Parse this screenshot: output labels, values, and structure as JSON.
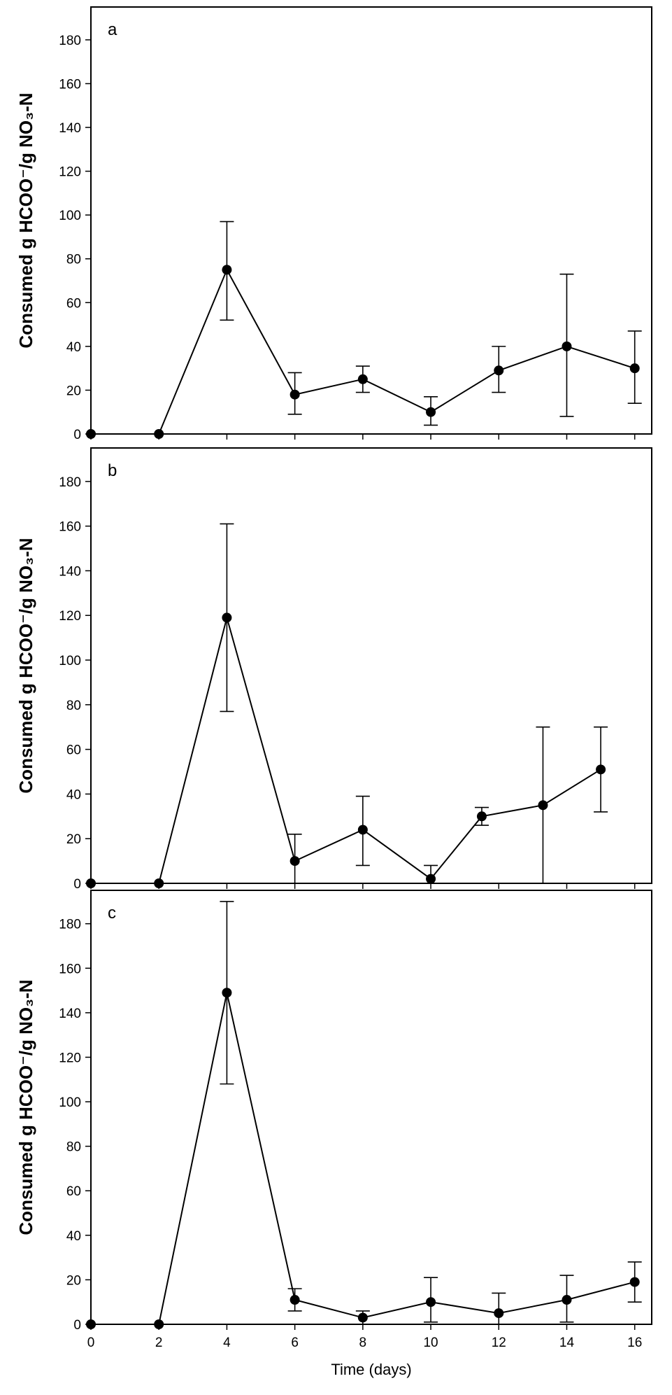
{
  "figure": {
    "xlabel": "Time (days)"
  },
  "chart_data": [
    {
      "type": "line",
      "panel_label": "a",
      "ylabel": "Consumed g HCOO⁻/g NO₃-N",
      "xlabel": "",
      "xlim": [
        0,
        16.5
      ],
      "ylim": [
        0,
        195
      ],
      "yticks": [
        0,
        20,
        40,
        60,
        80,
        100,
        120,
        140,
        160,
        180
      ],
      "xticks": [
        0,
        2,
        4,
        6,
        8,
        10,
        12,
        14,
        16
      ],
      "show_x_tick_labels": false,
      "series": [
        {
          "name": "a",
          "x": [
            0,
            2,
            4,
            6,
            8,
            10,
            12,
            14,
            16
          ],
          "y": [
            0,
            0,
            75,
            18,
            25,
            10,
            29,
            40,
            30
          ],
          "err_low": [
            null,
            null,
            52,
            9,
            19,
            4,
            19,
            8,
            14
          ],
          "err_high": [
            null,
            null,
            97,
            28,
            31,
            17,
            40,
            73,
            47
          ]
        }
      ]
    },
    {
      "type": "line",
      "panel_label": "b",
      "ylabel": "Consumed g HCOO⁻/g NO₃-N",
      "xlabel": "",
      "xlim": [
        0,
        16.5
      ],
      "ylim": [
        0,
        195
      ],
      "yticks": [
        0,
        20,
        40,
        60,
        80,
        100,
        120,
        140,
        160,
        180
      ],
      "xticks": [
        0,
        2,
        4,
        6,
        8,
        10,
        12,
        14,
        16
      ],
      "show_x_tick_labels": false,
      "series": [
        {
          "name": "b",
          "x": [
            0,
            2,
            4,
            6,
            8,
            10,
            11.5,
            13.3,
            15
          ],
          "y": [
            0,
            0,
            119,
            10,
            24,
            2,
            30,
            35,
            51
          ],
          "err_low": [
            null,
            null,
            77,
            0,
            8,
            0,
            26,
            0,
            32
          ],
          "err_high": [
            null,
            null,
            161,
            22,
            39,
            8,
            34,
            70,
            70
          ]
        }
      ]
    },
    {
      "type": "line",
      "panel_label": "c",
      "ylabel": "Consumed g HCOO⁻/g NO₃-N",
      "xlabel": "Time (days)",
      "xlim": [
        0,
        16.5
      ],
      "ylim": [
        0,
        195
      ],
      "yticks": [
        0,
        20,
        40,
        60,
        80,
        100,
        120,
        140,
        160,
        180
      ],
      "xticks": [
        0,
        2,
        4,
        6,
        8,
        10,
        12,
        14,
        16
      ],
      "show_x_tick_labels": true,
      "series": [
        {
          "name": "c",
          "x": [
            0,
            2,
            4,
            6,
            8,
            10,
            12,
            14,
            16
          ],
          "y": [
            0,
            0,
            149,
            11,
            3,
            10,
            5,
            11,
            19
          ],
          "err_low": [
            null,
            null,
            108,
            6,
            0,
            1,
            0,
            1,
            10
          ],
          "err_high": [
            null,
            null,
            190,
            16,
            6,
            21,
            14,
            22,
            28
          ]
        }
      ]
    }
  ]
}
